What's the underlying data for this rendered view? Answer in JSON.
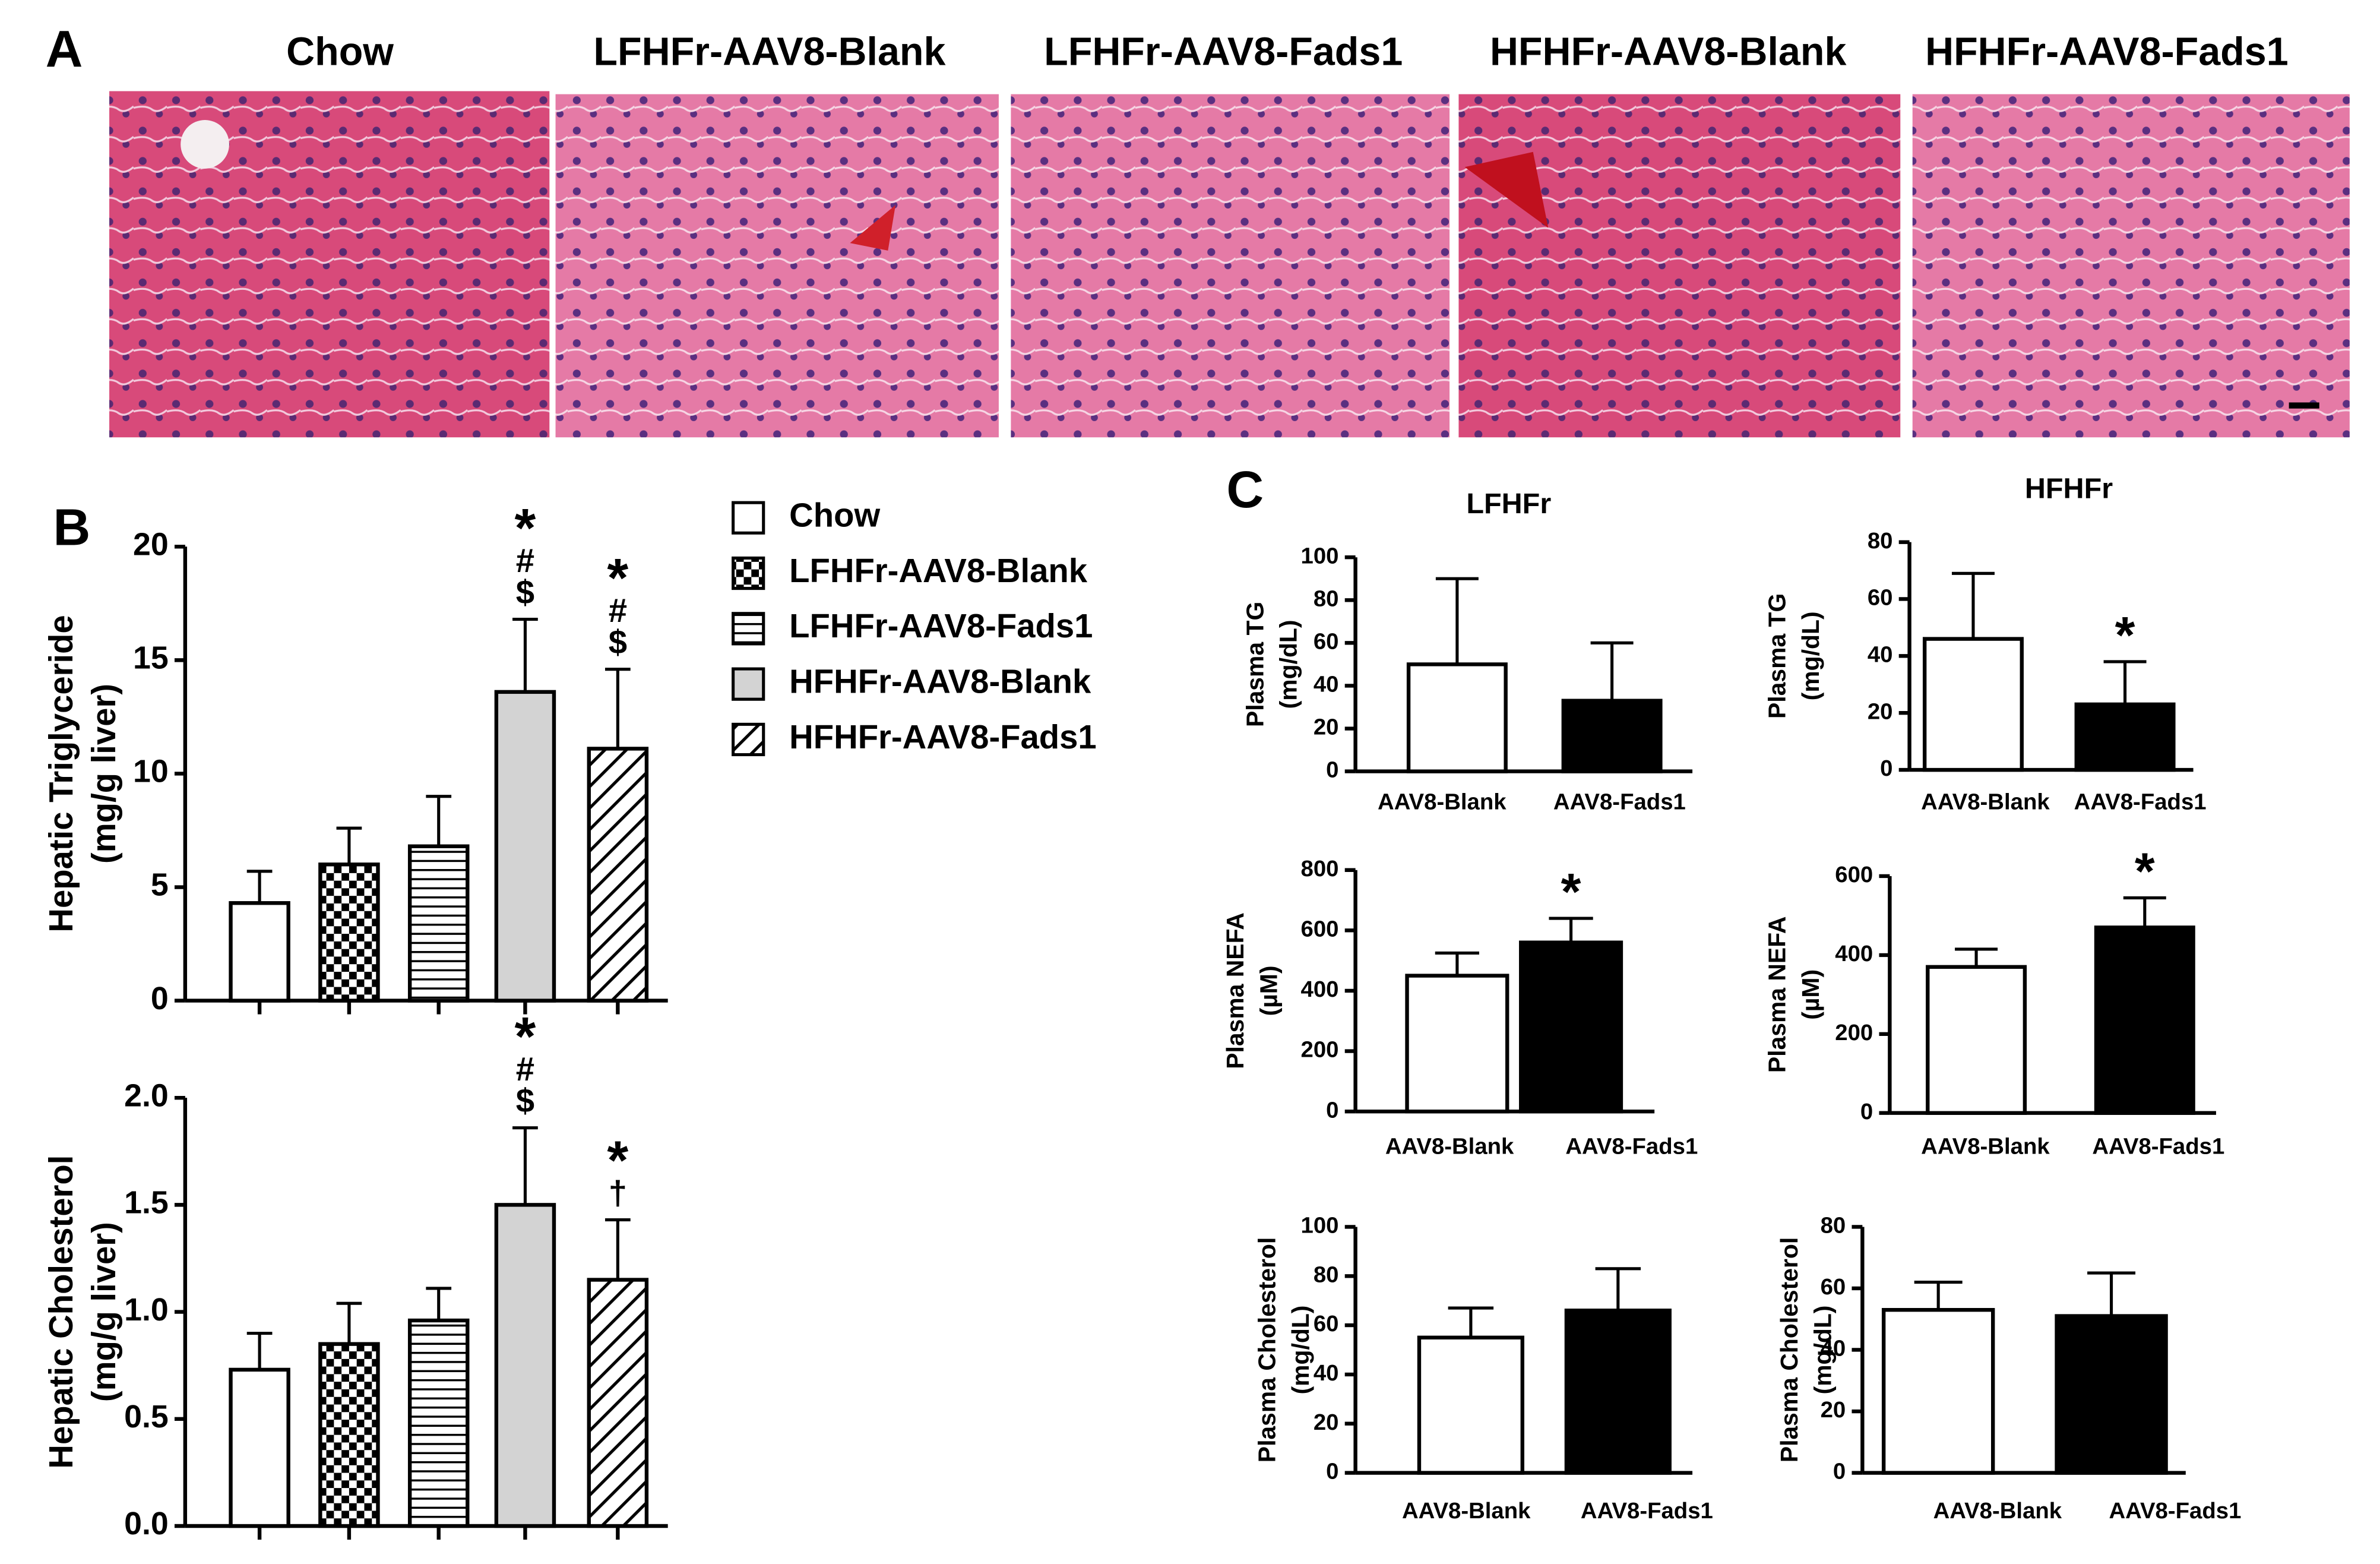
{
  "figure": {
    "panel_labels": [
      "A",
      "B",
      "C"
    ],
    "image_titles": [
      "Chow",
      "LFHFr-AAV8-Blank",
      "LFHFr-AAV8-Fads1",
      "HFHFr-AAV8-Blank",
      "HFHFr-AAV8-Fads1"
    ],
    "column_titles": [
      "LFHFr",
      "HFHFr"
    ]
  },
  "chart_data": [
    {
      "type": "bar",
      "ylabel": [
        "Hepatic Triglyceride",
        "(mg/g liver)"
      ],
      "categories": [
        "Chow",
        "LFHFr-AAV8-Blank",
        "LFHFr-AAV8-Fads1",
        "HFHFr-AAV8-Blank",
        "HFHFr-AAV8-Fads1"
      ],
      "fills": [
        "white",
        "checker",
        "hlines",
        "lightgray",
        "hatch"
      ],
      "values": [
        4.3,
        6.0,
        6.8,
        13.6,
        11.1
      ],
      "errors": [
        1.4,
        1.6,
        2.2,
        3.2,
        3.5
      ],
      "annotations": [
        [],
        [],
        [],
        [
          "*",
          "#",
          "$"
        ],
        [
          "*",
          "#",
          "$"
        ]
      ],
      "ylim": [
        0,
        20
      ],
      "yticks": [
        0,
        5,
        10,
        15,
        20
      ]
    },
    {
      "type": "bar",
      "ylabel": [
        "Hepatic Cholesterol",
        "(mg/g liver)"
      ],
      "fills": [
        "white",
        "checker",
        "hlines",
        "lightgray",
        "hatch"
      ],
      "values": [
        0.73,
        0.85,
        0.96,
        1.5,
        1.15
      ],
      "errors": [
        0.17,
        0.19,
        0.15,
        0.36,
        0.28
      ],
      "annotations": [
        [],
        [],
        [],
        [
          "*",
          "#",
          "$"
        ],
        [
          "*",
          "†"
        ]
      ],
      "ylim": [
        0,
        2.0
      ],
      "yticks": [
        {
          "value": 0,
          "label": "0.0"
        },
        0.5,
        {
          "value": 1,
          "label": "1.0"
        },
        1.5,
        {
          "value": 2,
          "label": "2.0"
        }
      ]
    },
    {
      "type": "bar",
      "ylabel": [
        "Plasma TG",
        "(mg/dL)"
      ],
      "categories": [
        "AAV8-Blank",
        "AAV8-Fads1"
      ],
      "colors": [
        "#ffffff",
        "#000000"
      ],
      "values": [
        50,
        33
      ],
      "errors": [
        40,
        27
      ],
      "annotations": [
        [],
        []
      ],
      "ylim": [
        0,
        100
      ],
      "yticks": [
        0,
        20,
        40,
        60,
        80,
        100
      ]
    },
    {
      "type": "bar",
      "ylabel": [
        "Plasma TG",
        "(mg/dL)"
      ],
      "categories": [
        "AAV8-Blank",
        "AAV8-Fads1"
      ],
      "colors": [
        "#ffffff",
        "#000000"
      ],
      "values": [
        46,
        23
      ],
      "errors": [
        23,
        15
      ],
      "annotations": [
        [],
        [
          "*"
        ]
      ],
      "ylim": [
        0,
        80
      ],
      "yticks": [
        0,
        20,
        40,
        60,
        80
      ]
    },
    {
      "type": "bar",
      "ylabel": [
        "Plasma NEFA",
        "(µM)"
      ],
      "categories": [
        "AAV8-Blank",
        "AAV8-Fads1"
      ],
      "colors": [
        "#ffffff",
        "#000000"
      ],
      "values": [
        450,
        560
      ],
      "errors": [
        75,
        80
      ],
      "annotations": [
        [],
        [
          "*"
        ]
      ],
      "ylim": [
        0,
        800
      ],
      "yticks": [
        0,
        200,
        400,
        600,
        800
      ]
    },
    {
      "type": "bar",
      "ylabel": [
        "Plasma NEFA",
        "(µM)"
      ],
      "categories": [
        "AAV8-Blank",
        "AAV8-Fads1"
      ],
      "colors": [
        "#ffffff",
        "#000000"
      ],
      "values": [
        370,
        470
      ],
      "errors": [
        45,
        75
      ],
      "annotations": [
        [],
        [
          "*"
        ]
      ],
      "ylim": [
        0,
        600
      ],
      "yticks": [
        0,
        200,
        400,
        600
      ]
    },
    {
      "type": "bar",
      "ylabel": [
        "Plasma Cholesterol",
        "(mg/dL)"
      ],
      "categories": [
        "AAV8-Blank",
        "AAV8-Fads1"
      ],
      "colors": [
        "#ffffff",
        "#000000"
      ],
      "values": [
        55,
        66
      ],
      "errors": [
        12,
        17
      ],
      "annotations": [
        [],
        []
      ],
      "ylim": [
        0,
        100
      ],
      "yticks": [
        0,
        20,
        40,
        60,
        80,
        100
      ]
    },
    {
      "type": "bar",
      "ylabel": [
        "Plasma Cholesterol",
        "(mg/dL)"
      ],
      "categories": [
        "AAV8-Blank",
        "AAV8-Fads1"
      ],
      "colors": [
        "#ffffff",
        "#000000"
      ],
      "values": [
        53,
        51
      ],
      "errors": [
        9,
        14
      ],
      "annotations": [
        [],
        []
      ],
      "ylim": [
        0,
        80
      ],
      "yticks": [
        0,
        20,
        40,
        60,
        80
      ]
    }
  ]
}
